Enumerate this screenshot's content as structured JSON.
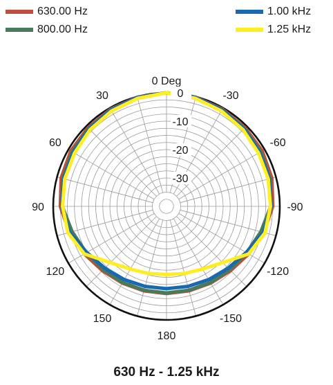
{
  "chart_data": {
    "type": "polar",
    "title": "630 Hz - 1.25 kHz",
    "angle_unit": "Deg",
    "angle_zero_label": "0 Deg",
    "angle_tick_labels": [
      {
        "angle": 30,
        "label": "30"
      },
      {
        "angle": -30,
        "label": "-30"
      },
      {
        "angle": 60,
        "label": "60"
      },
      {
        "angle": -60,
        "label": "-60"
      },
      {
        "angle": 90,
        "label": "90"
      },
      {
        "angle": -90,
        "label": "-90"
      },
      {
        "angle": 120,
        "label": "120"
      },
      {
        "angle": -120,
        "label": "-120"
      },
      {
        "angle": 150,
        "label": "150"
      },
      {
        "angle": -150,
        "label": "-150"
      },
      {
        "angle": 180,
        "label": "180"
      }
    ],
    "radial_ticks": [
      0,
      -10,
      -20,
      -30
    ],
    "radial_tick_labels": [
      "0",
      "-10",
      "-20",
      "-30"
    ],
    "radial_range": [
      -40,
      0
    ],
    "radial_grid_step": 2.5,
    "angular_grid_step": 15,
    "grid": true,
    "legend": "top",
    "angles": [
      0,
      15,
      30,
      45,
      60,
      75,
      90,
      105,
      120,
      135,
      150,
      165,
      180
    ],
    "series": [
      {
        "name": "630.00 Hz",
        "color": "#bf4e3a",
        "values": [
          0,
          -0.2,
          -0.5,
          -0.8,
          -1.0,
          -1.5,
          -2.5,
          -4.5,
          -6.5,
          -8.0,
          -8.8,
          -9.2,
          -9.3
        ]
      },
      {
        "name": "800.00 Hz",
        "color": "#4a7a5a",
        "values": [
          0,
          -0.3,
          -0.7,
          -1.2,
          -1.6,
          -2.2,
          -3.2,
          -5.5,
          -7.3,
          -8.5,
          -9.0,
          -9.4,
          -9.5
        ]
      },
      {
        "name": "1.00 kHz",
        "color": "#1769b0",
        "values": [
          0,
          -0.3,
          -0.8,
          -1.4,
          -2.0,
          -2.4,
          -3.0,
          -4.6,
          -7.5,
          -9.2,
          -10.2,
          -10.8,
          -11.0
        ]
      },
      {
        "name": "1.25 kHz",
        "color": "#ffee22",
        "values": [
          0,
          -0.6,
          -1.2,
          -1.8,
          -2.5,
          -2.8,
          -3.3,
          -4.0,
          -6.5,
          -12.0,
          -14.5,
          -15.5,
          -16.0
        ]
      }
    ]
  }
}
